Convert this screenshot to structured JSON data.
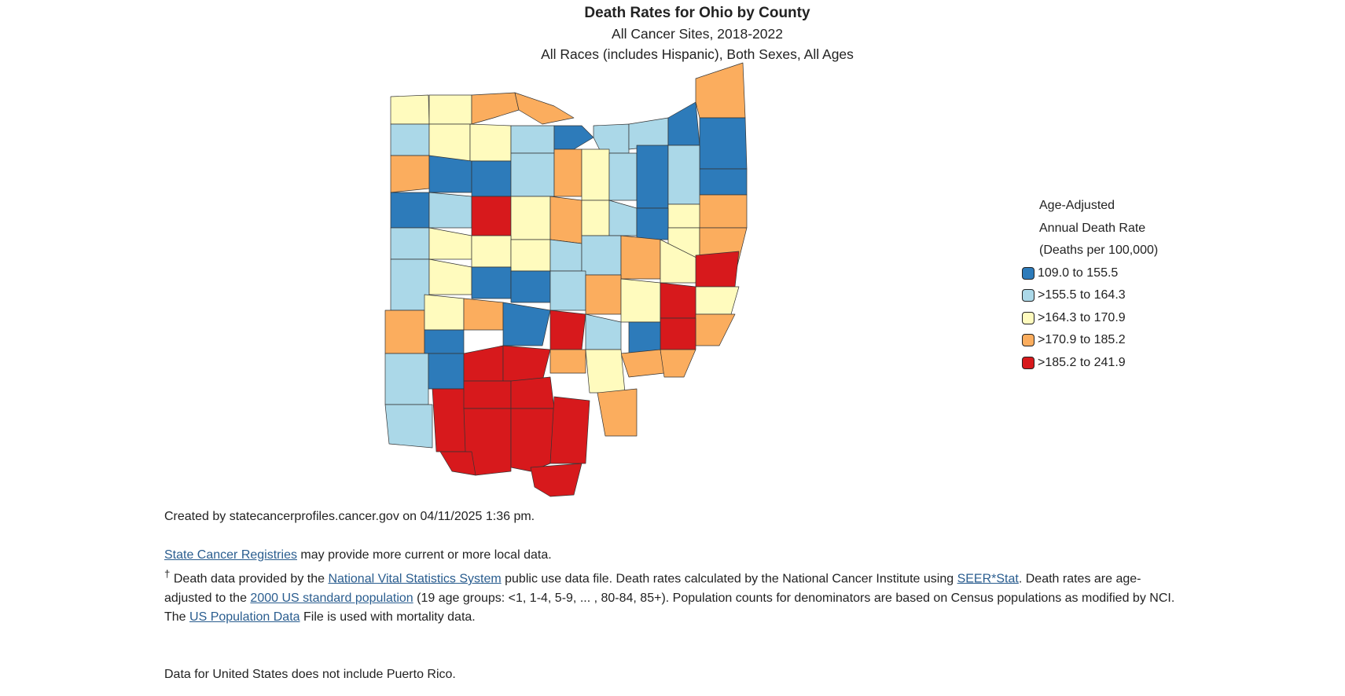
{
  "title": "Death Rates for Ohio by County",
  "subtitle1": "All Cancer Sites, 2018-2022",
  "subtitle2": "All Races (includes Hispanic), Both Sexes, All Ages",
  "legend": {
    "title_lines": [
      "Age-Adjusted",
      "Annual Death Rate",
      "(Deaths per 100,000)"
    ],
    "items": [
      {
        "label": "109.0 to 155.5",
        "color": "#2d7bba"
      },
      {
        "label": ">155.5 to 164.3",
        "color": "#abd8e8"
      },
      {
        "label": ">164.3 to 170.9",
        "color": "#fffbbe"
      },
      {
        "label": ">170.9 to 185.2",
        "color": "#fbad5e"
      },
      {
        "label": ">185.2 to 241.9",
        "color": "#d7191c"
      }
    ]
  },
  "map_data": {
    "counties": [
      {
        "class": 2,
        "shape": "Williams"
      },
      {
        "class": 2,
        "shape": "Fulton"
      },
      {
        "class": 3,
        "shape": "Lucas"
      },
      {
        "class": 3,
        "shape": "Ottawa"
      },
      {
        "class": 0,
        "shape": "Erie"
      },
      {
        "class": 1,
        "shape": "Lorain"
      },
      {
        "class": 1,
        "shape": "Cuyahoga"
      },
      {
        "class": 0,
        "shape": "Lake"
      },
      {
        "class": 3,
        "shape": "Ashtabula"
      },
      {
        "class": 1,
        "shape": "Defiance"
      },
      {
        "class": 2,
        "shape": "Henry"
      },
      {
        "class": 2,
        "shape": "Wood"
      },
      {
        "class": 1,
        "shape": "Sandusky"
      },
      {
        "class": 0,
        "shape": "Geauga"
      },
      {
        "class": 0,
        "shape": "Trumbull"
      },
      {
        "class": 3,
        "shape": "Paulding"
      },
      {
        "class": 0,
        "shape": "Putnam"
      },
      {
        "class": 0,
        "shape": "Hancock"
      },
      {
        "class": 2,
        "shape": "Seneca"
      },
      {
        "class": 3,
        "shape": "Huron"
      },
      {
        "class": 1,
        "shape": "Medina"
      },
      {
        "class": 0,
        "shape": "Summit"
      },
      {
        "class": 1,
        "shape": "Portage"
      },
      {
        "class": 2,
        "shape": "Geauga2"
      },
      {
        "class": 0,
        "shape": "Mahoning"
      },
      {
        "class": 3,
        "shape": "VanWert"
      },
      {
        "class": 1,
        "shape": "Allen"
      },
      {
        "class": 4,
        "shape": "Hardin"
      },
      {
        "class": 1,
        "shape": "Wyandot"
      },
      {
        "class": 3,
        "shape": "Crawford"
      },
      {
        "class": 2,
        "shape": "Richland"
      },
      {
        "class": 1,
        "shape": "Ashland"
      },
      {
        "class": 0,
        "shape": "Wayne"
      },
      {
        "class": 0,
        "shape": "Stark"
      },
      {
        "class": 1,
        "shape": "Columbiana2"
      },
      {
        "class": 3,
        "shape": "Columbiana"
      },
      {
        "class": 0,
        "shape": "Mercer"
      },
      {
        "class": 2,
        "shape": "Auglaize"
      },
      {
        "class": 2,
        "shape": "Logan"
      },
      {
        "class": 2,
        "shape": "Marion"
      },
      {
        "class": 3,
        "shape": "Morrow"
      },
      {
        "class": 2,
        "shape": "Knox"
      },
      {
        "class": 0,
        "shape": "Holmes"
      },
      {
        "class": 2,
        "shape": "Tuscarawas"
      },
      {
        "class": 2,
        "shape": "Carroll"
      },
      {
        "class": 3,
        "shape": "Jefferson"
      },
      {
        "class": 1,
        "shape": "Darke"
      },
      {
        "class": 2,
        "shape": "Shelby"
      },
      {
        "class": 2,
        "shape": "Champaign"
      },
      {
        "class": 0,
        "shape": "Union"
      },
      {
        "class": 0,
        "shape": "Delaware"
      },
      {
        "class": 1,
        "shape": "Licking"
      },
      {
        "class": 3,
        "shape": "Coshocton"
      },
      {
        "class": 4,
        "shape": "Harrison"
      },
      {
        "class": 1,
        "shape": "Miami"
      },
      {
        "class": 2,
        "shape": "Clark"
      },
      {
        "class": 3,
        "shape": "Madison"
      },
      {
        "class": 0,
        "shape": "Franklin"
      },
      {
        "class": 1,
        "shape": "Muskingum"
      },
      {
        "class": 4,
        "shape": "Guernsey"
      },
      {
        "class": 2,
        "shape": "Belmont"
      },
      {
        "class": 3,
        "shape": "Preble"
      },
      {
        "class": 2,
        "shape": "Montgomery"
      },
      {
        "class": 0,
        "shape": "Greene"
      },
      {
        "class": 2,
        "shape": "Fayette"
      },
      {
        "class": 3,
        "shape": "Pickaway"
      },
      {
        "class": 1,
        "shape": "Fairfield"
      },
      {
        "class": 4,
        "shape": "Perry"
      },
      {
        "class": 4,
        "shape": "Noble"
      },
      {
        "class": 0,
        "shape": "Monroe"
      },
      {
        "class": 3,
        "shape": "Washington0"
      },
      {
        "class": 1,
        "shape": "Butler"
      },
      {
        "class": 0,
        "shape": "Warren"
      },
      {
        "class": 4,
        "shape": "Clinton"
      },
      {
        "class": 4,
        "shape": "Ross"
      },
      {
        "class": 3,
        "shape": "Hocking"
      },
      {
        "class": 2,
        "shape": "Athens"
      },
      {
        "class": 3,
        "shape": "Washington"
      },
      {
        "class": 1,
        "shape": "Hamilton"
      },
      {
        "class": 1,
        "shape": "Clermont"
      },
      {
        "class": 4,
        "shape": "Brown"
      },
      {
        "class": 4,
        "shape": "Highland"
      },
      {
        "class": 4,
        "shape": "Pike"
      },
      {
        "class": 4,
        "shape": "Vinton"
      },
      {
        "class": 3,
        "shape": "Meigs"
      },
      {
        "class": 4,
        "shape": "Adams"
      },
      {
        "class": 4,
        "shape": "Scioto"
      },
      {
        "class": 4,
        "shape": "Jackson"
      },
      {
        "class": 4,
        "shape": "Gallia"
      },
      {
        "class": 4,
        "shape": "Lawrence"
      }
    ]
  },
  "footer": {
    "created": "Created by statecancerprofiles.cancer.gov on 04/11/2025 1:36 pm.",
    "registries_link": "State Cancer Registries",
    "registries_text": " may provide more current or more local data.",
    "dagger": "†",
    "nvss_pre": " Death data provided by the ",
    "nvss_link": "National Vital Statistics System",
    "nvss_mid": " public use data file. Death rates calculated by the National Cancer Institute using ",
    "seer_link": "SEER*Stat",
    "seer_post": ". Death rates are age-adjusted to the ",
    "std_link": "2000 US standard population",
    "std_post": " (19 age groups: <1, 1-4, 5-9, ... , 80-84, 85+). Population counts for denominators are based on Census populations as modified by NCI.",
    "pop_pre": "The ",
    "pop_link": "US Population Data",
    "pop_post": " File is used with mortality data.",
    "pr_note": "Data for United States does not include Puerto Rico."
  }
}
